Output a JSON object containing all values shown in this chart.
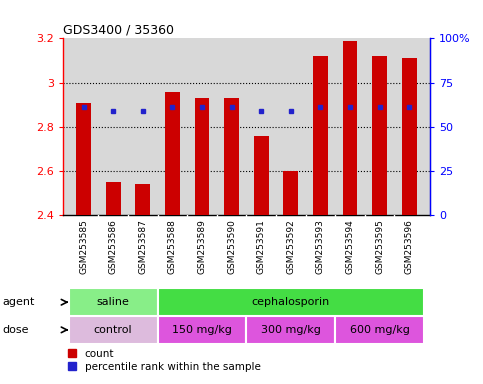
{
  "title": "GDS3400 / 35360",
  "samples": [
    "GSM253585",
    "GSM253586",
    "GSM253587",
    "GSM253588",
    "GSM253589",
    "GSM253590",
    "GSM253591",
    "GSM253592",
    "GSM253593",
    "GSM253594",
    "GSM253595",
    "GSM253596"
  ],
  "bar_values": [
    2.91,
    2.55,
    2.54,
    2.96,
    2.93,
    2.93,
    2.76,
    2.6,
    3.12,
    3.19,
    3.12,
    3.11
  ],
  "percentile_values": [
    2.89,
    2.87,
    2.87,
    2.89,
    2.89,
    2.89,
    2.87,
    2.87,
    2.89,
    2.89,
    2.89,
    2.89
  ],
  "bar_color": "#cc0000",
  "percentile_color": "#2222cc",
  "ylim": [
    2.4,
    3.2
  ],
  "yticks": [
    2.4,
    2.6,
    2.8,
    3.0,
    3.2
  ],
  "ytick_labels": [
    "2.4",
    "2.6",
    "2.8",
    "3",
    "3.2"
  ],
  "y2ticks_pct": [
    0,
    25,
    50,
    75,
    100
  ],
  "y2labels": [
    "0",
    "25",
    "50",
    "75",
    "100%"
  ],
  "agent_groups": [
    {
      "label": "saline",
      "start": 0,
      "end": 2,
      "color": "#88ee88"
    },
    {
      "label": "cephalosporin",
      "start": 3,
      "end": 11,
      "color": "#44dd44"
    }
  ],
  "dose_groups": [
    {
      "label": "control",
      "start": 0,
      "end": 2,
      "color": "#ddbbdd"
    },
    {
      "label": "150 mg/kg",
      "start": 3,
      "end": 5,
      "color": "#dd55dd"
    },
    {
      "label": "300 mg/kg",
      "start": 6,
      "end": 8,
      "color": "#dd55dd"
    },
    {
      "label": "600 mg/kg",
      "start": 9,
      "end": 11,
      "color": "#dd55dd"
    }
  ],
  "legend_items": [
    {
      "label": "count",
      "color": "#cc0000"
    },
    {
      "label": "percentile rank within the sample",
      "color": "#2222cc"
    }
  ],
  "plot_bg": "#d8d8d8",
  "bar_width": 0.5,
  "xlabel_bg": "#c8c8c8"
}
